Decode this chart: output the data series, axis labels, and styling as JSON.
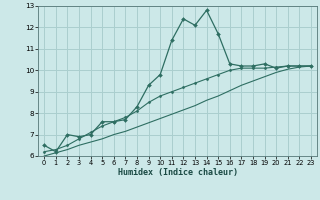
{
  "xlabel": "Humidex (Indice chaleur)",
  "ylabel": "",
  "background_color": "#cce8e8",
  "grid_color": "#aacece",
  "line_color": "#2e6e62",
  "x_humidex": [
    0,
    1,
    2,
    3,
    4,
    5,
    6,
    7,
    8,
    9,
    10,
    11,
    12,
    13,
    14,
    15,
    16,
    17,
    18,
    19,
    20,
    21,
    22,
    23
  ],
  "y_main": [
    6.5,
    6.2,
    7.0,
    6.9,
    7.0,
    7.6,
    7.6,
    7.7,
    8.3,
    9.3,
    9.8,
    11.4,
    12.4,
    12.1,
    12.8,
    11.7,
    10.3,
    10.2,
    10.2,
    10.3,
    10.1,
    10.2,
    10.2,
    10.2
  ],
  "y_line1": [
    6.2,
    6.3,
    6.5,
    6.8,
    7.1,
    7.4,
    7.6,
    7.8,
    8.1,
    8.5,
    8.8,
    9.0,
    9.2,
    9.4,
    9.6,
    9.8,
    10.0,
    10.1,
    10.1,
    10.1,
    10.15,
    10.2,
    10.2,
    10.2
  ],
  "y_line2": [
    6.0,
    6.15,
    6.3,
    6.5,
    6.65,
    6.8,
    7.0,
    7.15,
    7.35,
    7.55,
    7.75,
    7.95,
    8.15,
    8.35,
    8.6,
    8.8,
    9.05,
    9.3,
    9.5,
    9.7,
    9.9,
    10.05,
    10.15,
    10.2
  ],
  "ylim": [
    6,
    13
  ],
  "xlim": [
    -0.5,
    23.5
  ],
  "yticks": [
    6,
    7,
    8,
    9,
    10,
    11,
    12,
    13
  ],
  "xticks": [
    0,
    1,
    2,
    3,
    4,
    5,
    6,
    7,
    8,
    9,
    10,
    11,
    12,
    13,
    14,
    15,
    16,
    17,
    18,
    19,
    20,
    21,
    22,
    23
  ]
}
